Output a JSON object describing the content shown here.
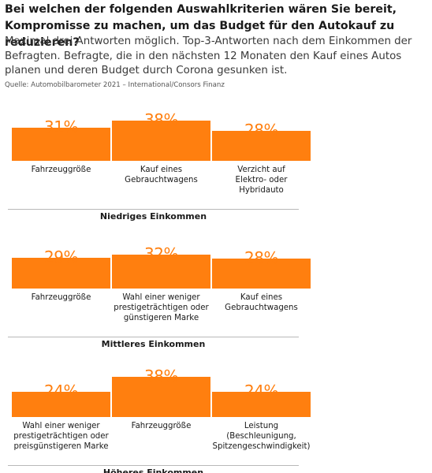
{
  "header": {
    "title": "Bei welchen der folgenden Auswahlkriterien wären Sie bereit, Kompromisse zu machen, um das Budget für den Autokauf zu reduzieren?",
    "subtitle": "Maximal drei Antworten möglich. Top-3-Antworten nach dem Einkommen der Befragten. Befragte, die in den nächsten 12 Monaten den Kauf eines Autos planen und deren Budget durch Corona gesunken ist.",
    "source": "Quelle: Automobilbarometer 2021 – International/Consors Finanz"
  },
  "colors": {
    "bar": "#ff7f0f",
    "rule": "#b8b8b8"
  },
  "chart_data": [
    {
      "type": "bar",
      "title": "Niedriges Einkommen",
      "categories": [
        "Fahrzeuggröße",
        "Kauf eines Gebrauchtwagens",
        "Verzicht auf Elektro- oder Hybridauto"
      ],
      "values": [
        31,
        38,
        28
      ],
      "value_labels": [
        "31%",
        "38%",
        "28%"
      ],
      "unit": "%"
    },
    {
      "type": "bar",
      "title": "Mittleres Einkommen",
      "categories": [
        "Fahrzeuggröße",
        "Wahl einer weniger prestigeträchtigen oder günstigeren Marke",
        "Kauf eines Gebrauchtwagens"
      ],
      "values": [
        29,
        32,
        28
      ],
      "value_labels": [
        "29%",
        "32%",
        "28%"
      ],
      "unit": "%"
    },
    {
      "type": "bar",
      "title": "Höheres Einkommen",
      "categories": [
        "Wahl einer weniger prestigeträchtigen oder preisgünstigeren Marke",
        "Fahrzeuggröße",
        "Leistung (Beschleunigung, Spitzengeschwindigkeit)"
      ],
      "values": [
        24,
        38,
        24
      ],
      "value_labels": [
        "24%",
        "38%",
        "24%"
      ],
      "unit": "%"
    }
  ]
}
